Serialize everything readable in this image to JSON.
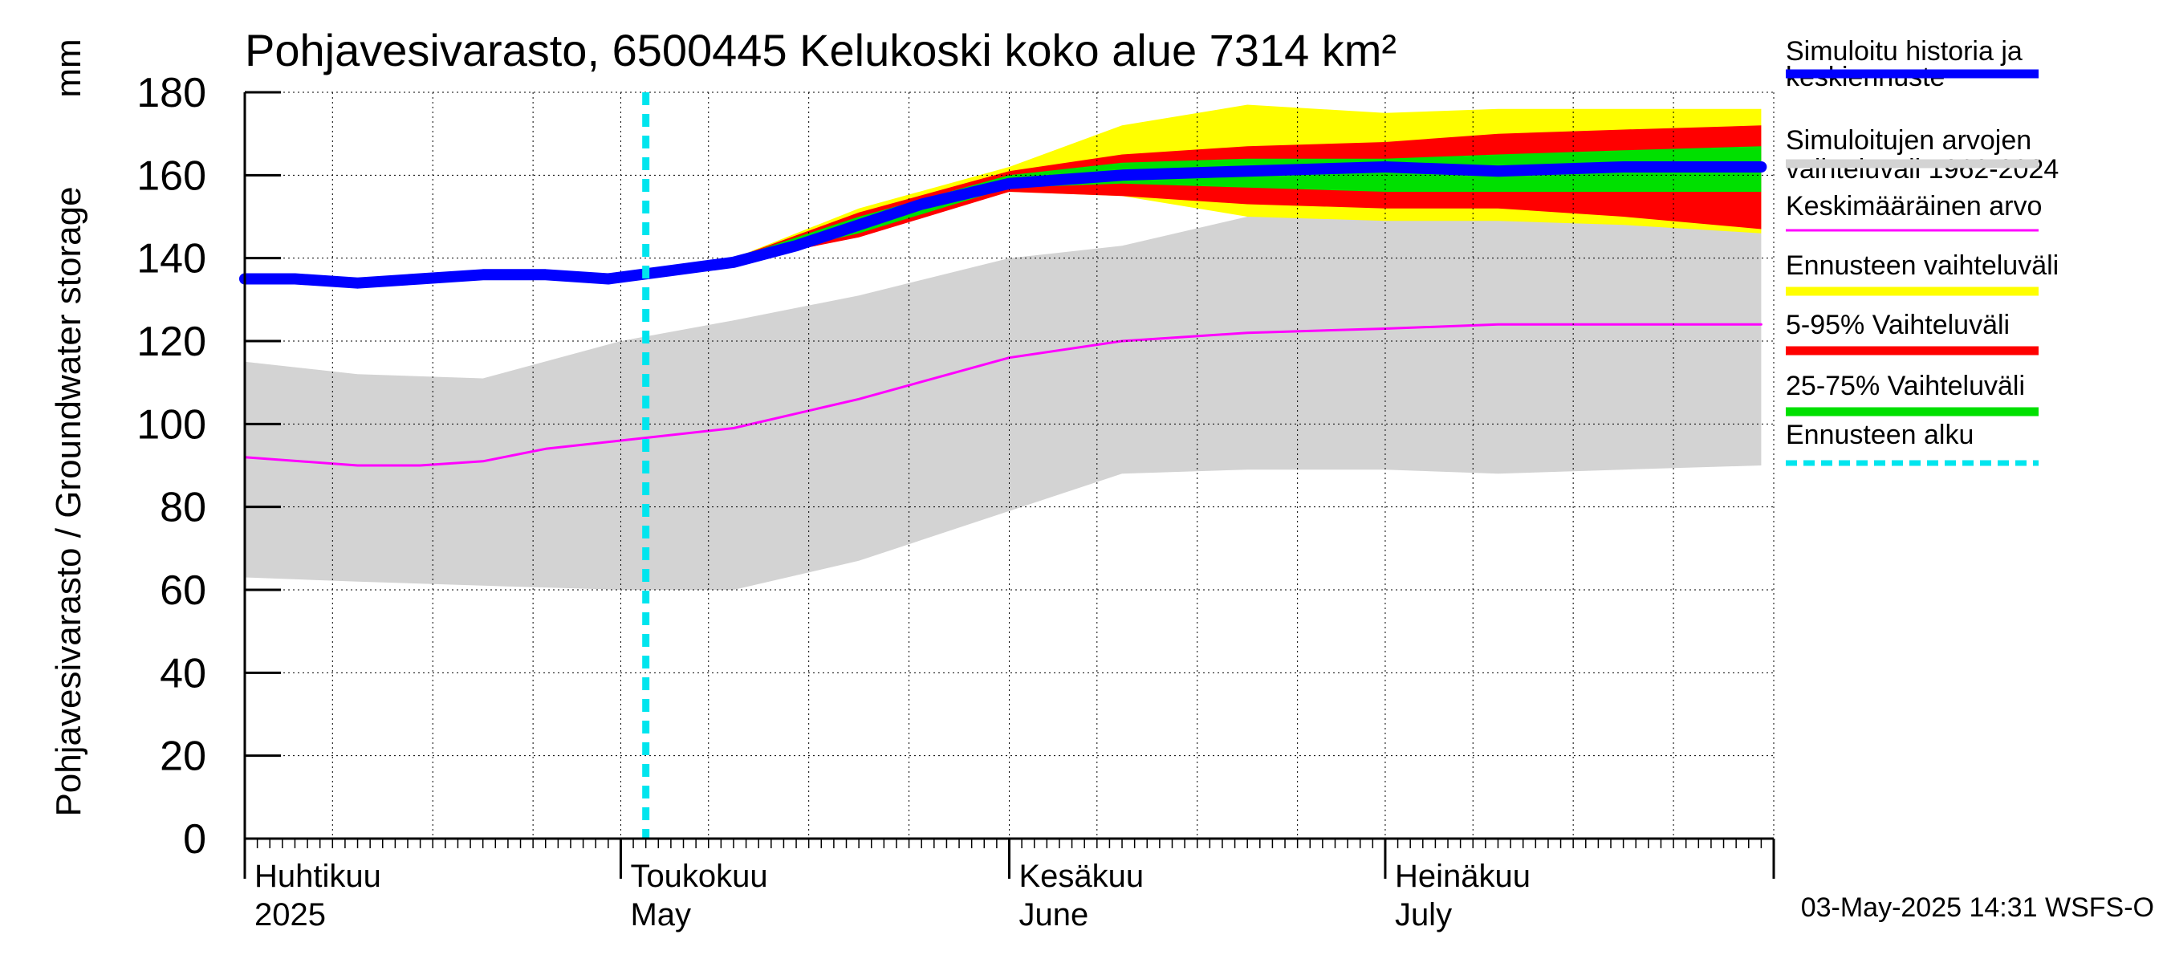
{
  "chart_data": {
    "type": "area",
    "title": "Pohjavesivarasto, 6500445 Kelukoski koko alue 7314 km²",
    "ylabel": "Pohjavesivarasto / Groundwater storage",
    "yunit": "mm",
    "ylim": [
      0,
      180
    ],
    "yticks": [
      0,
      20,
      40,
      60,
      80,
      100,
      120,
      140,
      160,
      180
    ],
    "xlim": [
      "2025-04-01",
      "2025-07-31"
    ],
    "grid": true,
    "legend_position": "right",
    "month_labels": [
      {
        "date": "2025-04-01",
        "fi": "Huhtikuu",
        "en": "2025"
      },
      {
        "date": "2025-05-01",
        "fi": "Toukokuu",
        "en": "May"
      },
      {
        "date": "2025-06-01",
        "fi": "Kesäkuu",
        "en": "June"
      },
      {
        "date": "2025-07-01",
        "fi": "Heinäkuu",
        "en": "July"
      }
    ],
    "forecast_start": "2025-05-03",
    "footer": "03-May-2025 14:31 WSFS-O",
    "colors": {
      "historical_range": "#d3d3d3",
      "mean": "#ff00ff",
      "forecast_range": "#ffff00",
      "p5_95": "#ff0000",
      "p25_75": "#00e000",
      "simulated": "#0000ff",
      "forecast_start": "#00e5ee"
    },
    "series": [
      {
        "name": "Simuloitujen arvojen vaihteluväli 1962-2024",
        "kind": "band",
        "x": [
          "2025-04-01",
          "2025-04-10",
          "2025-04-20",
          "2025-05-01",
          "2025-05-10",
          "2025-05-20",
          "2025-06-01",
          "2025-06-10",
          "2025-06-20",
          "2025-07-01",
          "2025-07-10",
          "2025-07-20",
          "2025-07-31"
        ],
        "low": [
          63,
          62,
          61,
          60,
          60,
          67,
          79,
          88,
          89,
          89,
          88,
          89,
          90
        ],
        "high": [
          115,
          112,
          111,
          120,
          125,
          131,
          140,
          143,
          150,
          150,
          150,
          149,
          148
        ]
      },
      {
        "name": "Keskimääräinen arvo",
        "kind": "line",
        "x": [
          "2025-04-01",
          "2025-04-10",
          "2025-04-15",
          "2025-04-20",
          "2025-04-25",
          "2025-05-01",
          "2025-05-10",
          "2025-05-20",
          "2025-06-01",
          "2025-06-10",
          "2025-06-20",
          "2025-07-01",
          "2025-07-10",
          "2025-07-20",
          "2025-07-31"
        ],
        "values": [
          92,
          90,
          90,
          91,
          94,
          96,
          99,
          106,
          116,
          120,
          122,
          123,
          124,
          124,
          124
        ]
      },
      {
        "name": "Ennusteen vaihteluväli",
        "kind": "band",
        "x": [
          "2025-05-03",
          "2025-05-10",
          "2025-05-20",
          "2025-06-01",
          "2025-06-10",
          "2025-06-20",
          "2025-07-01",
          "2025-07-10",
          "2025-07-20",
          "2025-07-31"
        ],
        "low": [
          137,
          139,
          146,
          156,
          155,
          150,
          149,
          149,
          148,
          146
        ],
        "high": [
          137,
          140,
          152,
          162,
          172,
          177,
          175,
          176,
          176,
          176
        ]
      },
      {
        "name": "5-95% Vaihteluväli",
        "kind": "band",
        "x": [
          "2025-05-03",
          "2025-05-10",
          "2025-05-20",
          "2025-06-01",
          "2025-06-10",
          "2025-06-20",
          "2025-07-01",
          "2025-07-10",
          "2025-07-20",
          "2025-07-31"
        ],
        "low": [
          137,
          139,
          145,
          156,
          155,
          153,
          152,
          152,
          150,
          147
        ],
        "high": [
          137,
          140,
          151,
          161,
          165,
          167,
          168,
          170,
          171,
          172
        ]
      },
      {
        "name": "25-75% Vaihteluväli",
        "kind": "band",
        "x": [
          "2025-05-03",
          "2025-05-10",
          "2025-05-20",
          "2025-06-01",
          "2025-06-10",
          "2025-06-20",
          "2025-07-01",
          "2025-07-10",
          "2025-07-20",
          "2025-07-31"
        ],
        "low": [
          137,
          139,
          146,
          157,
          158,
          157,
          156,
          156,
          156,
          156
        ],
        "high": [
          137,
          140,
          150,
          160,
          163,
          164,
          164,
          165,
          166,
          167
        ]
      },
      {
        "name": "Simuloitu historia ja keskiennuste",
        "kind": "line",
        "x": [
          "2025-04-01",
          "2025-04-05",
          "2025-04-10",
          "2025-04-15",
          "2025-04-20",
          "2025-04-25",
          "2025-04-30",
          "2025-05-05",
          "2025-05-10",
          "2025-05-15",
          "2025-05-20",
          "2025-05-25",
          "2025-06-01",
          "2025-06-10",
          "2025-06-20",
          "2025-07-01",
          "2025-07-10",
          "2025-07-20",
          "2025-07-31"
        ],
        "values": [
          135,
          135,
          134,
          135,
          136,
          136,
          135,
          137,
          139,
          143,
          148,
          153,
          158,
          160,
          161,
          162,
          161,
          162,
          162
        ]
      }
    ],
    "legend": [
      {
        "label": "Simuloitu historia ja keskiennuste",
        "color": "#0000ff",
        "style": "thick"
      },
      {
        "label": "Simuloitujen arvojen vaihteluväli 1962-2024",
        "color": "#d3d3d3",
        "style": "thick"
      },
      {
        "label": "Keskimääräinen arvo",
        "color": "#ff00ff",
        "style": "thin"
      },
      {
        "label": "Ennusteen vaihteluväli",
        "color": "#ffff00",
        "style": "thick"
      },
      {
        "label": "5-95% Vaihteluväli",
        "color": "#ff0000",
        "style": "thick"
      },
      {
        "label": "25-75% Vaihteluväli",
        "color": "#00e000",
        "style": "thick"
      },
      {
        "label": "Ennusteen alku",
        "color": "#00e5ee",
        "style": "dashed"
      }
    ]
  }
}
